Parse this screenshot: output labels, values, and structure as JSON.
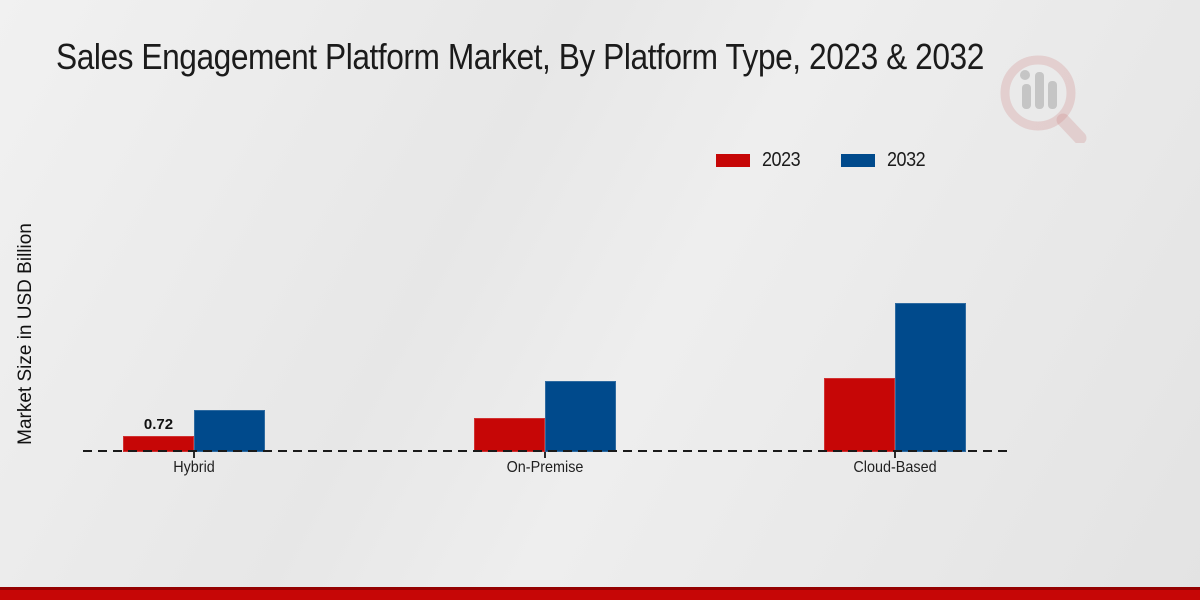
{
  "title": "Sales Engagement Platform Market, By Platform Type, 2023 & 2032",
  "y_axis_label": "Market Size in USD Billion",
  "chart_data": {
    "type": "bar",
    "categories": [
      "Hybrid",
      "On-Premise",
      "Cloud-Based"
    ],
    "series": [
      {
        "name": "2023",
        "color": "#c60606",
        "values": [
          0.72,
          1.53,
          3.33
        ]
      },
      {
        "name": "2032",
        "color": "#004a8c",
        "values": [
          1.89,
          3.2,
          6.71
        ]
      }
    ],
    "annotations": [
      {
        "text": "0.72",
        "category_index": 0,
        "series_index": 0
      }
    ],
    "title": "Sales Engagement Platform Market, By Platform Type, 2023 & 2032",
    "xlabel": "",
    "ylabel": "Market Size in USD Billion",
    "ylim": [
      0,
      7.5
    ],
    "grid": false,
    "legend_position": "top-right",
    "x_axis_style": "dashed-baseline"
  },
  "branding": {
    "watermark_icon": "magnifier-bar-chart-logo-watermark",
    "footer_accent_color": "#c60606",
    "footer_edge_color": "#950101"
  }
}
